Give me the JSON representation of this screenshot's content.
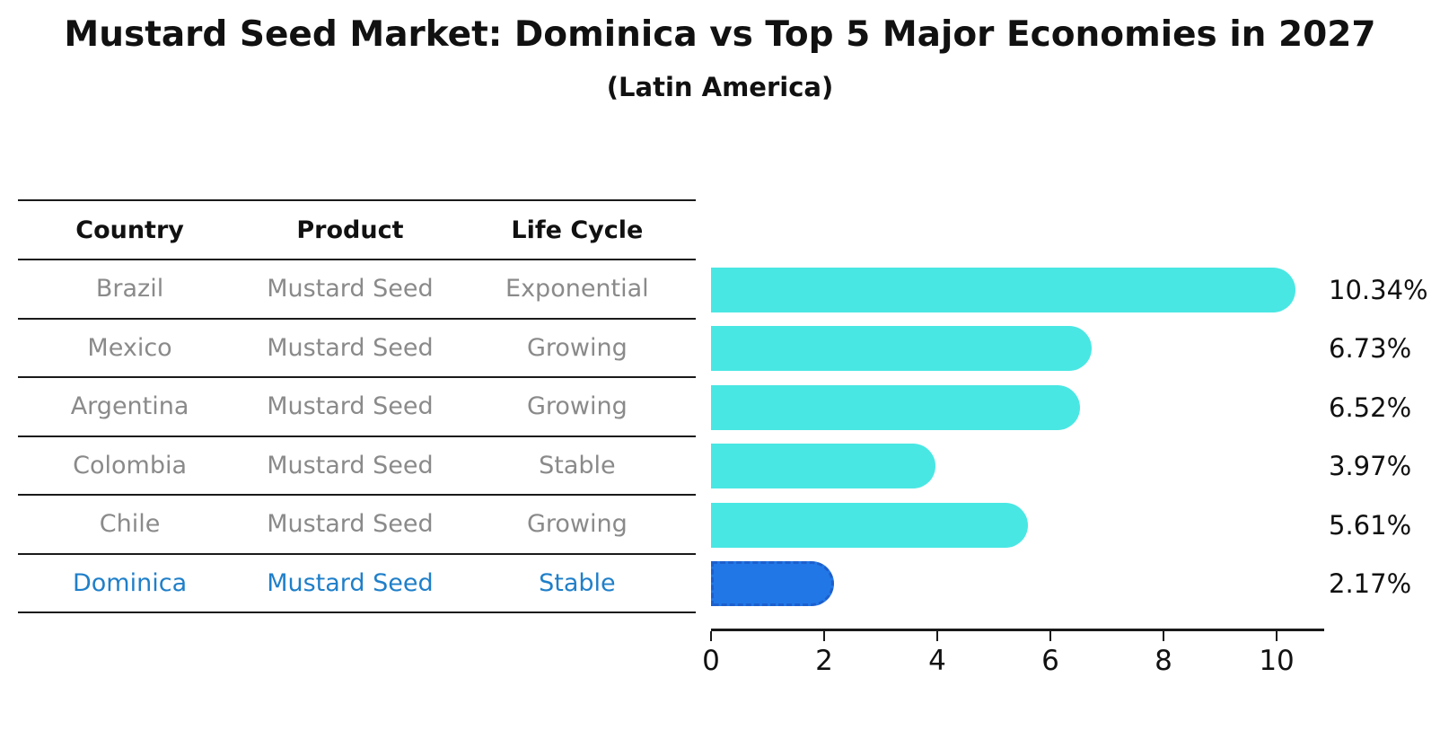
{
  "title": "Mustard Seed Market: Dominica vs Top 5 Major Economies in 2027",
  "subtitle": "(Latin America)",
  "table": {
    "headers": {
      "country": "Country",
      "product": "Product",
      "life_cycle": "Life Cycle"
    },
    "rows": [
      {
        "country": "Brazil",
        "product": "Mustard Seed",
        "life_cycle": "Exponential",
        "highlight": false
      },
      {
        "country": "Mexico",
        "product": "Mustard Seed",
        "life_cycle": "Growing",
        "highlight": false
      },
      {
        "country": "Argentina",
        "product": "Mustard Seed",
        "life_cycle": "Growing",
        "highlight": false
      },
      {
        "country": "Colombia",
        "product": "Mustard Seed",
        "life_cycle": "Stable",
        "highlight": false
      },
      {
        "country": "Chile",
        "product": "Mustard Seed",
        "life_cycle": "Growing",
        "highlight": false
      },
      {
        "country": "Dominica",
        "product": "Mustard Seed",
        "life_cycle": "Stable",
        "highlight": true
      }
    ]
  },
  "chart_data": {
    "type": "bar",
    "orientation": "horizontal",
    "title": "Mustard Seed Market: Dominica vs Top 5 Major Economies in 2027",
    "subtitle": "(Latin America)",
    "categories": [
      "Brazil",
      "Mexico",
      "Argentina",
      "Colombia",
      "Chile",
      "Dominica"
    ],
    "values": [
      10.34,
      6.73,
      6.52,
      3.97,
      5.61,
      2.17
    ],
    "value_labels": [
      "10.34%",
      "6.73%",
      "6.52%",
      "3.97%",
      "5.61%",
      "2.17%"
    ],
    "xlabel": "",
    "ylabel": "",
    "xlim": [
      0,
      10.84
    ],
    "x_ticks": [
      0,
      2,
      4,
      6,
      8,
      10
    ],
    "grid": false,
    "legend": false,
    "highlight_index": 5,
    "bar_color": "#49E7E3",
    "highlight_bar_color": "#2277E6",
    "highlight_border_color": "#1C5FCD",
    "highlight_text_color": "#1F7FC9"
  },
  "colors": {
    "background": "#FFFFFF",
    "title_text": "#111111",
    "table_header_text": "#111111",
    "table_row_text": "#8A8A8A",
    "rule_line": "#1A1A1A",
    "axis_text": "#111111"
  }
}
